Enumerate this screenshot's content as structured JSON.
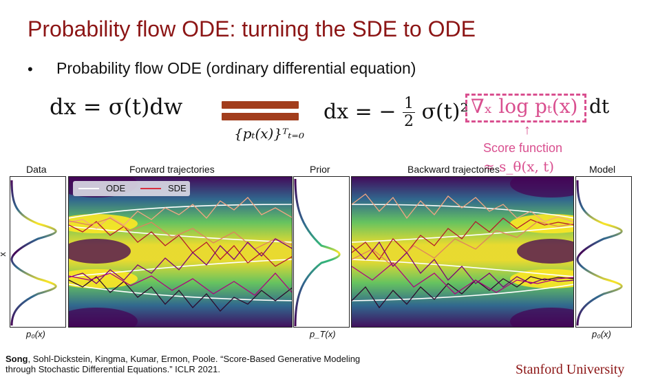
{
  "slide": {
    "title": "Probability flow ODE: turning the SDE to ODE",
    "bullet": "Probability flow ODE (ordinary differential equation)",
    "eq_left": "dx = σ(t)dw",
    "family": "{pₜ(x)}ᵀₜ₌₀",
    "eq_right_prefix": "dx = −",
    "eq_right_frac_num": "1",
    "eq_right_frac_den": "2",
    "eq_right_mid": "σ(t)²",
    "eq_right_score": "∇ₓ log pₜ(x)",
    "eq_right_suffix": "dt",
    "score_label": "Score function",
    "score_approx": "≈ s_θ(x, t)",
    "panel_labels": {
      "data": "Data",
      "forward": "Forward trajectories",
      "prior": "Prior",
      "backward": "Backward trajectories",
      "model": "Model"
    },
    "ylabel": "x",
    "bottom_labels": {
      "left": "p₀(x)",
      "mid": "p_T(x)",
      "right": "p₀(x)"
    },
    "legend": {
      "ode": "ODE",
      "sde": "SDE"
    },
    "citation_bold": "Song",
    "citation_rest": ", Sohl-Dickstein, Kingma, Kumar, Ermon, Poole. “Score-Based Generative Modeling",
    "citation_line2": "through Stochastic Differential Equations.” ICLR 2021.",
    "university": "Stanford University"
  },
  "colors": {
    "title": "#8c1515",
    "accent": "#d94f8f",
    "bar": "#a23d1c"
  }
}
